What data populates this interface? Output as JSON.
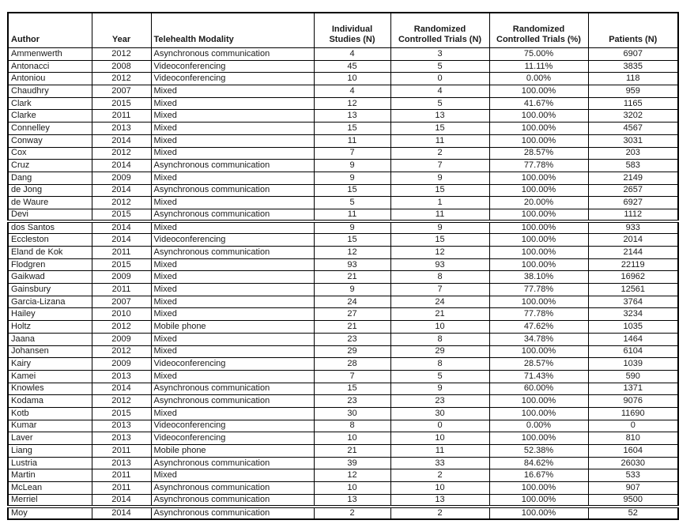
{
  "colors": {
    "background": "#ffffff",
    "border": "#000000",
    "text": "#1a1a1a"
  },
  "table": {
    "columns": [
      {
        "id": "author",
        "label": "Author",
        "align": "left"
      },
      {
        "id": "year",
        "label": "Year",
        "align": "center"
      },
      {
        "id": "modality",
        "label": "Telehealth Modality",
        "align": "left"
      },
      {
        "id": "individual_studies_n",
        "label": "Individual Studies (N)",
        "align": "center"
      },
      {
        "id": "rct_n",
        "label": "Randomized Controlled Trials (N)",
        "align": "center"
      },
      {
        "id": "rct_pct",
        "label": "Randomized Controlled Trials (%)",
        "align": "center"
      },
      {
        "id": "patients_n",
        "label": "Patients (N)",
        "align": "center"
      }
    ],
    "rows": [
      {
        "author": "Ammenwerth",
        "year": "2012",
        "modality": "Asynchronous communication",
        "individual_studies_n": "4",
        "rct_n": "3",
        "rct_pct": "75.00%",
        "patients_n": "6907"
      },
      {
        "author": "Antonacci",
        "year": "2008",
        "modality": "Videoconferencing",
        "individual_studies_n": "45",
        "rct_n": "5",
        "rct_pct": "11.11%",
        "patients_n": "3835"
      },
      {
        "author": "Antoniou",
        "year": "2012",
        "modality": "Videoconferencing",
        "individual_studies_n": "10",
        "rct_n": "0",
        "rct_pct": "0.00%",
        "patients_n": "118"
      },
      {
        "author": "Chaudhry",
        "year": "2007",
        "modality": "Mixed",
        "individual_studies_n": "4",
        "rct_n": "4",
        "rct_pct": "100.00%",
        "patients_n": "959"
      },
      {
        "author": "Clark",
        "year": "2015",
        "modality": "Mixed",
        "individual_studies_n": "12",
        "rct_n": "5",
        "rct_pct": "41.67%",
        "patients_n": "1165"
      },
      {
        "author": "Clarke",
        "year": "2011",
        "modality": "Mixed",
        "individual_studies_n": "13",
        "rct_n": "13",
        "rct_pct": "100.00%",
        "patients_n": "3202"
      },
      {
        "author": "Connelley",
        "year": "2013",
        "modality": "Mixed",
        "individual_studies_n": "15",
        "rct_n": "15",
        "rct_pct": "100.00%",
        "patients_n": "4567"
      },
      {
        "author": "Conway",
        "year": "2014",
        "modality": "Mixed",
        "individual_studies_n": "11",
        "rct_n": "11",
        "rct_pct": "100.00%",
        "patients_n": "3031"
      },
      {
        "author": "Cox",
        "year": "2012",
        "modality": "Mixed",
        "individual_studies_n": "7",
        "rct_n": "2",
        "rct_pct": "28.57%",
        "patients_n": "203"
      },
      {
        "author": "Cruz",
        "year": "2014",
        "modality": "Asynchronous communication",
        "individual_studies_n": "9",
        "rct_n": "7",
        "rct_pct": "77.78%",
        "patients_n": "583"
      },
      {
        "author": "Dang",
        "year": "2009",
        "modality": "Mixed",
        "individual_studies_n": "9",
        "rct_n": "9",
        "rct_pct": "100.00%",
        "patients_n": "2149"
      },
      {
        "author": "de Jong",
        "year": "2014",
        "modality": "Asynchronous communication",
        "individual_studies_n": "15",
        "rct_n": "15",
        "rct_pct": "100.00%",
        "patients_n": "2657"
      },
      {
        "author": "de Waure",
        "year": "2012",
        "modality": "Mixed",
        "individual_studies_n": "5",
        "rct_n": "1",
        "rct_pct": "20.00%",
        "patients_n": "6927"
      },
      {
        "author": "Devi",
        "year": "2015",
        "modality": "Asynchronous communication",
        "individual_studies_n": "11",
        "rct_n": "11",
        "rct_pct": "100.00%",
        "patients_n": "1112"
      },
      {
        "author": "dos Santos",
        "year": "2014",
        "modality": "Mixed",
        "individual_studies_n": "9",
        "rct_n": "9",
        "rct_pct": "100.00%",
        "patients_n": "933",
        "gap_above": true
      },
      {
        "author": "Eccleston",
        "year": "2014",
        "modality": "Videoconferencing",
        "individual_studies_n": "15",
        "rct_n": "15",
        "rct_pct": "100.00%",
        "patients_n": "2014"
      },
      {
        "author": "Eland de Kok",
        "year": "2011",
        "modality": "Asynchronous communication",
        "individual_studies_n": "12",
        "rct_n": "12",
        "rct_pct": "100.00%",
        "patients_n": "2144"
      },
      {
        "author": "Flodgren",
        "year": "2015",
        "modality": "Mixed",
        "individual_studies_n": "93",
        "rct_n": "93",
        "rct_pct": "100.00%",
        "patients_n": "22119"
      },
      {
        "author": "Gaikwad",
        "year": "2009",
        "modality": "Mixed",
        "individual_studies_n": "21",
        "rct_n": "8",
        "rct_pct": "38.10%",
        "patients_n": "16962"
      },
      {
        "author": "Gainsbury",
        "year": "2011",
        "modality": "Mixed",
        "individual_studies_n": "9",
        "rct_n": "7",
        "rct_pct": "77.78%",
        "patients_n": "12561"
      },
      {
        "author": "Garcia-Lizana",
        "year": "2007",
        "modality": "Mixed",
        "individual_studies_n": "24",
        "rct_n": "24",
        "rct_pct": "100.00%",
        "patients_n": "3764"
      },
      {
        "author": "Hailey",
        "year": "2010",
        "modality": "Mixed",
        "individual_studies_n": "27",
        "rct_n": "21",
        "rct_pct": "77.78%",
        "patients_n": "3234"
      },
      {
        "author": "Holtz",
        "year": "2012",
        "modality": "Mobile phone",
        "individual_studies_n": "21",
        "rct_n": "10",
        "rct_pct": "47.62%",
        "patients_n": "1035"
      },
      {
        "author": "Jaana",
        "year": "2009",
        "modality": "Mixed",
        "individual_studies_n": "23",
        "rct_n": "8",
        "rct_pct": "34.78%",
        "patients_n": "1464"
      },
      {
        "author": "Johansen",
        "year": "2012",
        "modality": "Mixed",
        "individual_studies_n": "29",
        "rct_n": "29",
        "rct_pct": "100.00%",
        "patients_n": "6104"
      },
      {
        "author": "Kairy",
        "year": "2009",
        "modality": "Videoconferencing",
        "individual_studies_n": "28",
        "rct_n": "8",
        "rct_pct": "28.57%",
        "patients_n": "1039"
      },
      {
        "author": "Kamei",
        "year": "2013",
        "modality": "Mixed",
        "individual_studies_n": "7",
        "rct_n": "5",
        "rct_pct": "71.43%",
        "patients_n": "590"
      },
      {
        "author": "Knowles",
        "year": "2014",
        "modality": "Asynchronous communication",
        "individual_studies_n": "15",
        "rct_n": "9",
        "rct_pct": "60.00%",
        "patients_n": "1371"
      },
      {
        "author": "Kodama",
        "year": "2012",
        "modality": "Asynchronous communication",
        "individual_studies_n": "23",
        "rct_n": "23",
        "rct_pct": "100.00%",
        "patients_n": "9076"
      },
      {
        "author": "Kotb",
        "year": "2015",
        "modality": "Mixed",
        "individual_studies_n": "30",
        "rct_n": "30",
        "rct_pct": "100.00%",
        "patients_n": "11690"
      },
      {
        "author": "Kumar",
        "year": "2013",
        "modality": "Videoconferencing",
        "individual_studies_n": "8",
        "rct_n": "0",
        "rct_pct": "0.00%",
        "patients_n": "0"
      },
      {
        "author": "Laver",
        "year": "2013",
        "modality": "Videoconferencing",
        "individual_studies_n": "10",
        "rct_n": "10",
        "rct_pct": "100.00%",
        "patients_n": "810"
      },
      {
        "author": "Liang",
        "year": "2011",
        "modality": "Mobile phone",
        "individual_studies_n": "21",
        "rct_n": "11",
        "rct_pct": "52.38%",
        "patients_n": "1604"
      },
      {
        "author": "Lustria",
        "year": "2013",
        "modality": "Asynchronous communication",
        "individual_studies_n": "39",
        "rct_n": "33",
        "rct_pct": "84.62%",
        "patients_n": "26030"
      },
      {
        "author": "Martin",
        "year": "2011",
        "modality": "Mixed",
        "individual_studies_n": "12",
        "rct_n": "2",
        "rct_pct": "16.67%",
        "patients_n": "533"
      },
      {
        "author": "McLean",
        "year": "2011",
        "modality": "Asynchronous communication",
        "individual_studies_n": "10",
        "rct_n": "10",
        "rct_pct": "100.00%",
        "patients_n": "907"
      },
      {
        "author": "Merriel",
        "year": "2014",
        "modality": "Asynchronous communication",
        "individual_studies_n": "13",
        "rct_n": "13",
        "rct_pct": "100.00%",
        "patients_n": "9500"
      },
      {
        "author": "Moy",
        "year": "2014",
        "modality": "Asynchronous communication",
        "individual_studies_n": "2",
        "rct_n": "2",
        "rct_pct": "100.00%",
        "patients_n": "52",
        "gap_above": true
      }
    ]
  }
}
